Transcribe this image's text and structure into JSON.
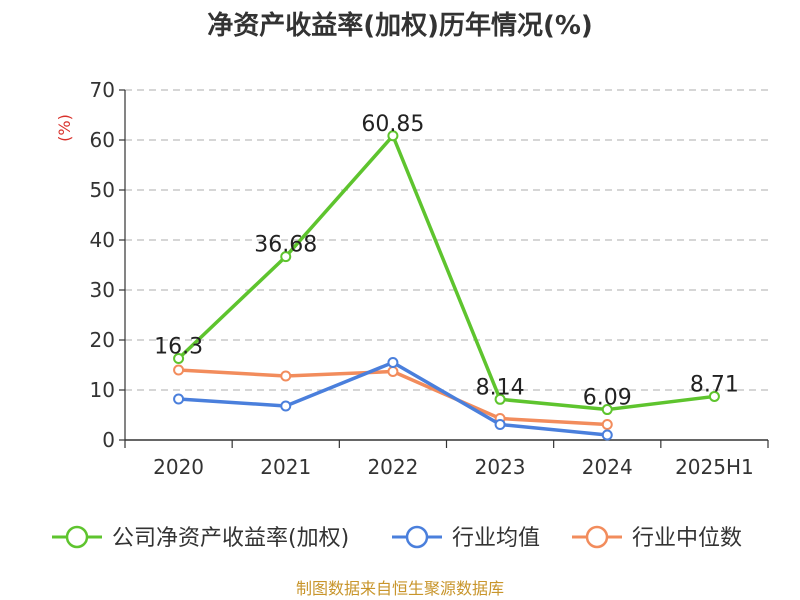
{
  "chart_data": {
    "type": "line",
    "title": "净资产收益率(加权)历年情况(%)",
    "unit_label": "(%)",
    "categories": [
      "2020",
      "2021",
      "2022",
      "2023",
      "2024",
      "2025H1"
    ],
    "ylim": [
      0,
      70
    ],
    "yticks": [
      0,
      10,
      20,
      30,
      40,
      50,
      60,
      70
    ],
    "grid": true,
    "legend_position": "bottom",
    "series": [
      {
        "name": "公司净资产收益率(加权)",
        "color": "#5ec42e",
        "values": [
          16.3,
          36.68,
          60.85,
          8.14,
          6.09,
          8.71
        ],
        "labels": [
          "16.3",
          "36.68",
          "60.85",
          "8.14",
          "6.09",
          "8.71"
        ]
      },
      {
        "name": "行业均值",
        "color": "#4a7fdc",
        "values": [
          8.2,
          6.8,
          15.5,
          3.1,
          1.0,
          null
        ]
      },
      {
        "name": "行业中位数",
        "color": "#f28c5c",
        "values": [
          14.0,
          12.8,
          13.7,
          4.3,
          3.1,
          null
        ]
      }
    ]
  },
  "source": "制图数据来自恒生聚源数据库"
}
